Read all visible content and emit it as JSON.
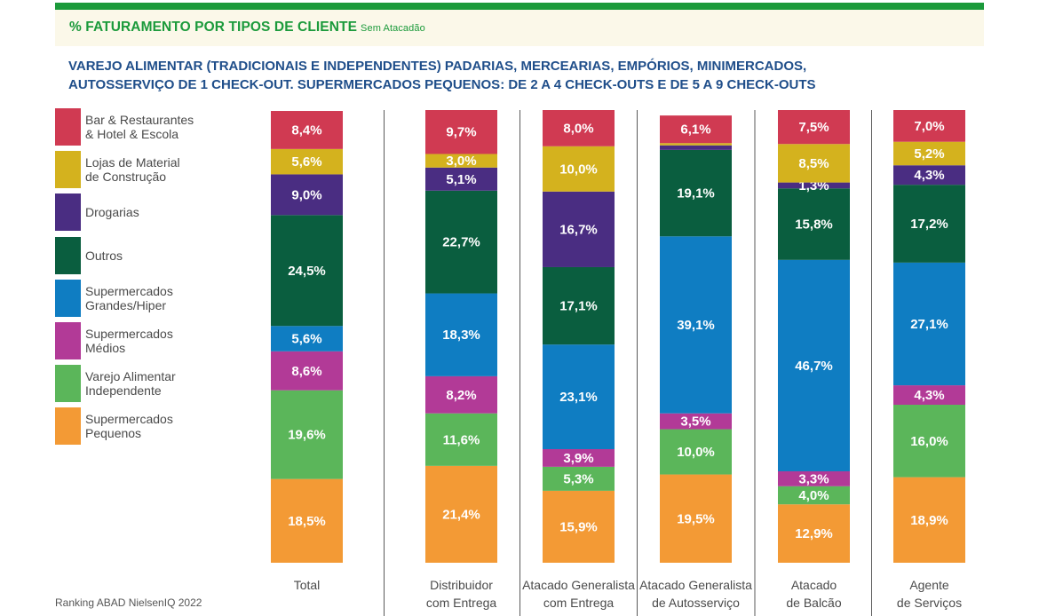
{
  "header": {
    "title": "% FATURAMENTO POR TIPOS DE CLIENTE",
    "subtitle_small": "Sem Atacadão",
    "bar_color": "#1b9a3b",
    "title_color": "#1b9a3b"
  },
  "subtitle_lines": [
    "VAREJO ALIMENTAR (TRADICIONAIS E INDEPENDENTES) PADARIAS, MERCEARIAS, EMPÓRIOS, MINIMERCADOS,",
    "AUTOSSERVIÇO DE 1 CHECK-OUT. SUPERMERCADOS PEQUENOS: DE 2 A 4 CHECK-OUTS E DE 5 A 9 CHECK-OUTS"
  ],
  "source": "Ranking ABAD NielsenIQ 2022",
  "chart_data": {
    "type": "bar",
    "stacked": true,
    "normalized_100": true,
    "value_format": "comma_decimal_percent",
    "categories": [
      [
        "Total"
      ],
      [
        "Distribuidor",
        "com Entrega"
      ],
      [
        "Atacado Generalista",
        "com Entrega"
      ],
      [
        "Atacado Generalista",
        "de Autosserviço"
      ],
      [
        "Atacado",
        "de Balcão"
      ],
      [
        "Agente",
        "de Serviços"
      ]
    ],
    "series": [
      {
        "name": "Supermercados Pequenos",
        "color": "#f39a35",
        "values": [
          18.5,
          21.4,
          15.9,
          19.5,
          12.9,
          18.9
        ]
      },
      {
        "name": "Varejo Alimentar Independente",
        "color": "#5bb65a",
        "values": [
          19.6,
          11.6,
          5.3,
          10.0,
          4.0,
          16.0
        ]
      },
      {
        "name": "Supermercados Médios",
        "color": "#b23a97",
        "values": [
          8.6,
          8.2,
          3.9,
          3.5,
          3.3,
          4.3
        ]
      },
      {
        "name": "Supermercados Grandes/Hiper",
        "color": "#0f7dc2",
        "values": [
          5.6,
          18.3,
          23.1,
          39.1,
          46.7,
          27.1
        ]
      },
      {
        "name": "Outros",
        "color": "#0a5e3f",
        "values": [
          24.5,
          22.7,
          17.1,
          19.1,
          15.8,
          17.2
        ]
      },
      {
        "name": "Drogarias",
        "color": "#4a2d82",
        "values": [
          9.0,
          5.1,
          16.7,
          1.0,
          1.3,
          4.3
        ]
      },
      {
        "name": "Lojas de Material de Construção",
        "color": "#d4b21e",
        "values": [
          5.6,
          3.0,
          10.0,
          0.5,
          8.5,
          5.2
        ]
      },
      {
        "name": "Bar & Restaurantes & Hotel & Escola",
        "color": "#d03a52",
        "values": [
          8.4,
          9.7,
          8.0,
          6.1,
          7.5,
          7.0
        ]
      }
    ],
    "data_labels": [
      [
        "18,5%",
        "21,4%",
        "15,9%",
        "19,5%",
        "12,9%",
        "18,9%"
      ],
      [
        "19,6%",
        "11,6%",
        "5,3%",
        "10,0%",
        "4,0%",
        "16,0%"
      ],
      [
        "8,6%",
        "8,2%",
        "3,9%",
        "3,5%",
        "3,3%",
        "4,3%"
      ],
      [
        "5,6%",
        "18,3%",
        "23,1%",
        "39,1%",
        "46,7%",
        "27,1%"
      ],
      [
        "24,5%",
        "22,7%",
        "17,1%",
        "19,1%",
        "15,8%",
        "17,2%"
      ],
      [
        "9,0%",
        "5,1%",
        "16,7%",
        "",
        "1,3%",
        "4,3%"
      ],
      [
        "5,6%",
        "3,0%",
        "10,0%",
        "",
        "8,5%",
        "5,2%"
      ],
      [
        "8,4%",
        "9,7%",
        "8,0%",
        "6,1%",
        "7,5%",
        "7,0%"
      ]
    ],
    "legend": {
      "placement": "left",
      "items": [
        {
          "lines": [
            "Bar & Restaurantes",
            "& Hotel & Escola"
          ],
          "color": "#d03a52"
        },
        {
          "lines": [
            "Lojas de Material",
            "de Construção"
          ],
          "color": "#d4b21e"
        },
        {
          "lines": [
            "Drogarias"
          ],
          "color": "#4a2d82"
        },
        {
          "lines": [
            "Outros"
          ],
          "color": "#0a5e3f"
        },
        {
          "lines": [
            "Supermercados",
            "Grandes/Hiper"
          ],
          "color": "#0f7dc2"
        },
        {
          "lines": [
            "Supermercados",
            "Médios"
          ],
          "color": "#b23a97"
        },
        {
          "lines": [
            "Varejo Alimentar",
            "Independente"
          ],
          "color": "#5bb65a"
        },
        {
          "lines": [
            "Supermercados",
            "Pequenos"
          ],
          "color": "#f39a35"
        }
      ]
    },
    "grid": false,
    "ylim": [
      0,
      100
    ]
  }
}
